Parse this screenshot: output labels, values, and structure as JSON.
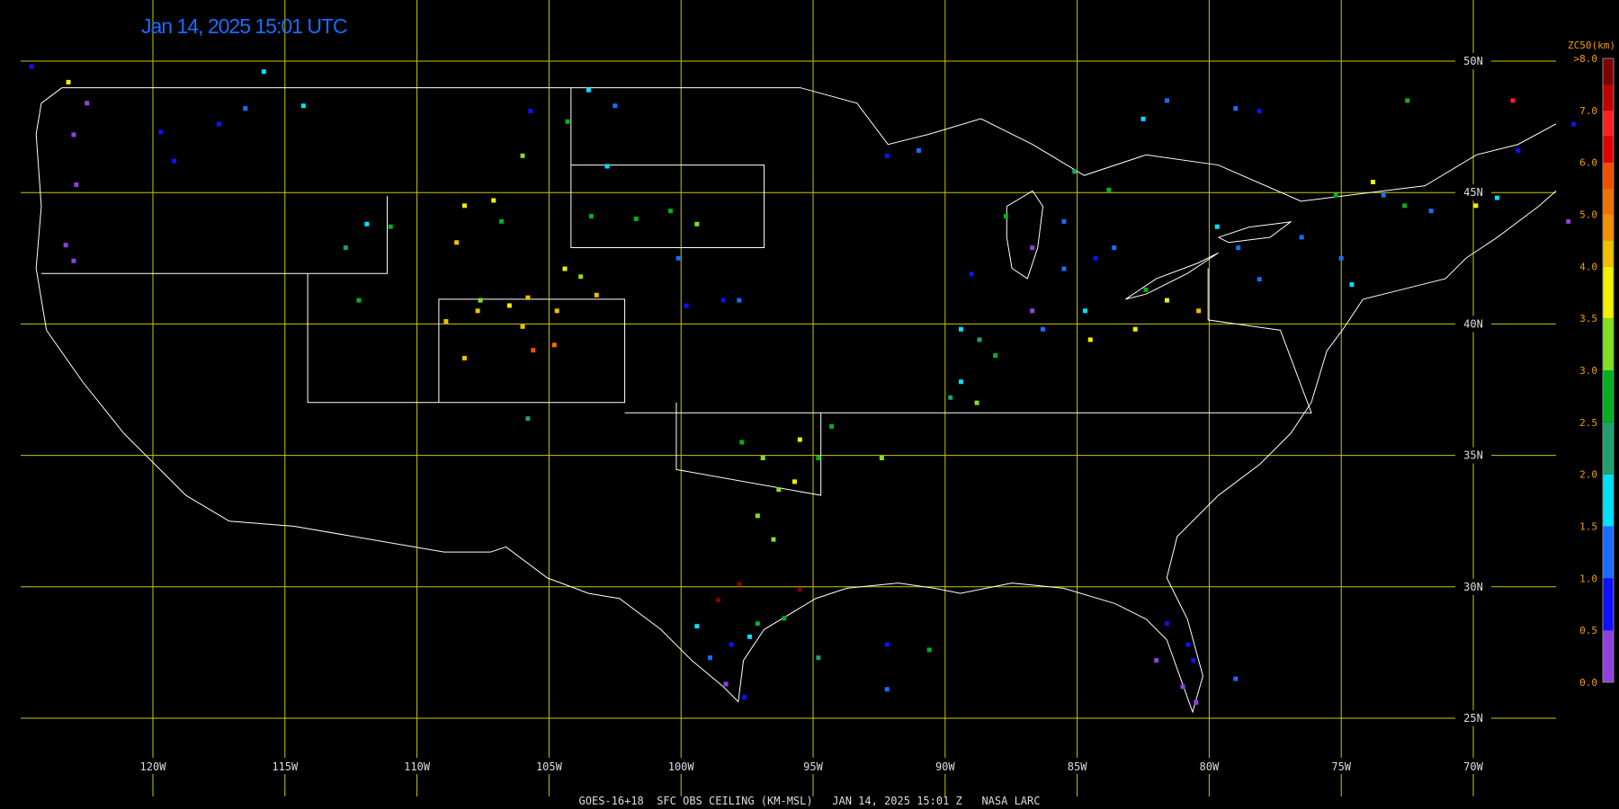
{
  "header": {
    "title": "Jan 14, 2025 15:01 UTC"
  },
  "map": {
    "lon_ticks": [
      {
        "value": -120,
        "label": "120W"
      },
      {
        "value": -115,
        "label": "115W"
      },
      {
        "value": -110,
        "label": "110W"
      },
      {
        "value": -105,
        "label": "105W"
      },
      {
        "value": -100,
        "label": "100W"
      },
      {
        "value": -95,
        "label": "95W"
      },
      {
        "value": -90,
        "label": "90W"
      },
      {
        "value": -85,
        "label": "85W"
      },
      {
        "value": -80,
        "label": "80W"
      },
      {
        "value": -75,
        "label": "75W"
      },
      {
        "value": -70,
        "label": "70W"
      }
    ],
    "lat_ticks": [
      {
        "value": 50,
        "label": "50N"
      },
      {
        "value": 45,
        "label": "45N"
      },
      {
        "value": 40,
        "label": "40N"
      },
      {
        "value": 35,
        "label": "35N"
      },
      {
        "value": 30,
        "label": "30N"
      },
      {
        "value": 25,
        "label": "25N"
      }
    ],
    "stations": [
      {
        "lon": -123.0,
        "lat": 47.2,
        "value": 0.3
      },
      {
        "lon": -122.9,
        "lat": 45.3,
        "value": 0.3
      },
      {
        "lon": -123.3,
        "lat": 43.0,
        "value": 0.3
      },
      {
        "lon": -123.0,
        "lat": 42.4,
        "value": 0.3
      },
      {
        "lon": -119.7,
        "lat": 47.3,
        "value": 0.8
      },
      {
        "lon": -119.2,
        "lat": 46.2,
        "value": 0.8
      },
      {
        "lon": -117.5,
        "lat": 47.6,
        "value": 0.8
      },
      {
        "lon": -116.5,
        "lat": 48.2,
        "value": 1.2
      },
      {
        "lon": -114.3,
        "lat": 48.3,
        "value": 1.6
      },
      {
        "lon": -115.8,
        "lat": 49.6,
        "value": 1.8
      },
      {
        "lon": -105.7,
        "lat": 48.1,
        "value": 0.8
      },
      {
        "lon": -104.3,
        "lat": 47.7,
        "value": 2.8
      },
      {
        "lon": -106.0,
        "lat": 46.4,
        "value": 3.2
      },
      {
        "lon": -103.5,
        "lat": 48.9,
        "value": 1.8
      },
      {
        "lon": -102.5,
        "lat": 48.3,
        "value": 1.2
      },
      {
        "lon": -102.8,
        "lat": 46.0,
        "value": 1.8
      },
      {
        "lon": -108.2,
        "lat": 44.5,
        "value": 3.8
      },
      {
        "lon": -108.5,
        "lat": 43.1,
        "value": 4.3
      },
      {
        "lon": -107.1,
        "lat": 44.7,
        "value": 3.8
      },
      {
        "lon": -106.8,
        "lat": 43.9,
        "value": 2.8
      },
      {
        "lon": -111.9,
        "lat": 43.8,
        "value": 1.8
      },
      {
        "lon": -112.7,
        "lat": 42.9,
        "value": 2.3
      },
      {
        "lon": -111.0,
        "lat": 43.7,
        "value": 2.8
      },
      {
        "lon": -112.2,
        "lat": 40.9,
        "value": 2.8
      },
      {
        "lon": -107.6,
        "lat": 40.9,
        "value": 3.2
      },
      {
        "lon": -107.7,
        "lat": 40.5,
        "value": 4.3
      },
      {
        "lon": -106.5,
        "lat": 40.7,
        "value": 3.8
      },
      {
        "lon": -106.0,
        "lat": 39.9,
        "value": 4.3
      },
      {
        "lon": -108.9,
        "lat": 40.1,
        "value": 4.3
      },
      {
        "lon": -108.2,
        "lat": 38.7,
        "value": 4.3
      },
      {
        "lon": -105.6,
        "lat": 39.0,
        "value": 5.7
      },
      {
        "lon": -104.8,
        "lat": 39.2,
        "value": 5.2
      },
      {
        "lon": -104.7,
        "lat": 40.5,
        "value": 4.3
      },
      {
        "lon": -105.8,
        "lat": 41.0,
        "value": 4.3
      },
      {
        "lon": -104.4,
        "lat": 42.1,
        "value": 3.8
      },
      {
        "lon": -103.2,
        "lat": 41.1,
        "value": 4.3
      },
      {
        "lon": -103.8,
        "lat": 41.8,
        "value": 3.2
      },
      {
        "lon": -103.4,
        "lat": 44.1,
        "value": 2.8
      },
      {
        "lon": -101.7,
        "lat": 44.0,
        "value": 2.8
      },
      {
        "lon": -100.4,
        "lat": 44.3,
        "value": 2.5
      },
      {
        "lon": -99.4,
        "lat": 43.8,
        "value": 3.2
      },
      {
        "lon": -100.1,
        "lat": 42.5,
        "value": 1.2
      },
      {
        "lon": -99.8,
        "lat": 40.7,
        "value": 0.8
      },
      {
        "lon": -98.4,
        "lat": 40.9,
        "value": 0.8
      },
      {
        "lon": -97.8,
        "lat": 40.9,
        "value": 1.1
      },
      {
        "lon": -105.8,
        "lat": 36.4,
        "value": 2.3
      },
      {
        "lon": -97.7,
        "lat": 35.5,
        "value": 2.8
      },
      {
        "lon": -96.9,
        "lat": 34.9,
        "value": 3.2
      },
      {
        "lon": -95.5,
        "lat": 35.6,
        "value": 3.8
      },
      {
        "lon": -94.8,
        "lat": 34.9,
        "value": 2.8
      },
      {
        "lon": -94.3,
        "lat": 36.1,
        "value": 2.8
      },
      {
        "lon": -95.7,
        "lat": 34.0,
        "value": 3.8
      },
      {
        "lon": -97.1,
        "lat": 32.7,
        "value": 3.2
      },
      {
        "lon": -96.5,
        "lat": 31.8,
        "value": 3.2
      },
      {
        "lon": -96.3,
        "lat": 33.7,
        "value": 3.2
      },
      {
        "lon": -92.4,
        "lat": 34.9,
        "value": 3.2
      },
      {
        "lon": -98.6,
        "lat": 29.5,
        "value": 7.8
      },
      {
        "lon": -97.8,
        "lat": 30.1,
        "value": 7.8
      },
      {
        "lon": -95.5,
        "lat": 29.9,
        "value": 7.8
      },
      {
        "lon": -96.1,
        "lat": 28.8,
        "value": 2.8
      },
      {
        "lon": -97.1,
        "lat": 28.6,
        "value": 2.8
      },
      {
        "lon": -99.4,
        "lat": 28.5,
        "value": 1.8
      },
      {
        "lon": -98.1,
        "lat": 27.8,
        "value": 0.8
      },
      {
        "lon": -98.9,
        "lat": 27.3,
        "value": 1.2
      },
      {
        "lon": -98.3,
        "lat": 26.3,
        "value": 0.3
      },
      {
        "lon": -97.6,
        "lat": 25.8,
        "value": 0.8
      },
      {
        "lon": -97.4,
        "lat": 28.1,
        "value": 1.8
      },
      {
        "lon": -94.8,
        "lat": 27.3,
        "value": 2.3
      },
      {
        "lon": -92.2,
        "lat": 27.8,
        "value": 0.8
      },
      {
        "lon": -92.2,
        "lat": 26.1,
        "value": 1.2
      },
      {
        "lon": -90.6,
        "lat": 27.6,
        "value": 2.8
      },
      {
        "lon": -89.0,
        "lat": 41.9,
        "value": 0.8
      },
      {
        "lon": -89.4,
        "lat": 39.8,
        "value": 1.8
      },
      {
        "lon": -88.7,
        "lat": 39.4,
        "value": 2.3
      },
      {
        "lon": -88.1,
        "lat": 38.8,
        "value": 2.8
      },
      {
        "lon": -86.7,
        "lat": 40.5,
        "value": 0.3
      },
      {
        "lon": -86.3,
        "lat": 39.8,
        "value": 1.0
      },
      {
        "lon": -85.5,
        "lat": 42.1,
        "value": 1.0
      },
      {
        "lon": -84.7,
        "lat": 40.5,
        "value": 1.8
      },
      {
        "lon": -84.3,
        "lat": 42.5,
        "value": 0.8
      },
      {
        "lon": -83.6,
        "lat": 42.9,
        "value": 1.0
      },
      {
        "lon": -84.5,
        "lat": 39.4,
        "value": 3.8
      },
      {
        "lon": -82.8,
        "lat": 39.8,
        "value": 3.8
      },
      {
        "lon": -81.6,
        "lat": 40.9,
        "value": 3.8
      },
      {
        "lon": -80.4,
        "lat": 40.5,
        "value": 4.3
      },
      {
        "lon": -82.4,
        "lat": 41.3,
        "value": 2.8
      },
      {
        "lon": -89.4,
        "lat": 37.8,
        "value": 1.8
      },
      {
        "lon": -88.8,
        "lat": 37.0,
        "value": 3.2
      },
      {
        "lon": -89.8,
        "lat": 37.2,
        "value": 2.3
      },
      {
        "lon": -87.7,
        "lat": 44.1,
        "value": 2.8
      },
      {
        "lon": -85.5,
        "lat": 43.9,
        "value": 1.2
      },
      {
        "lon": -85.1,
        "lat": 45.8,
        "value": 2.3
      },
      {
        "lon": -83.8,
        "lat": 45.1,
        "value": 2.8
      },
      {
        "lon": -86.7,
        "lat": 42.9,
        "value": 0.3
      },
      {
        "lon": -78.9,
        "lat": 42.9,
        "value": 1.2
      },
      {
        "lon": -76.5,
        "lat": 43.3,
        "value": 1.2
      },
      {
        "lon": -75.0,
        "lat": 42.5,
        "value": 1.0
      },
      {
        "lon": -79.7,
        "lat": 43.7,
        "value": 1.8
      },
      {
        "lon": -78.1,
        "lat": 41.7,
        "value": 1.2
      },
      {
        "lon": -74.6,
        "lat": 41.5,
        "value": 1.8
      },
      {
        "lon": -73.4,
        "lat": 44.9,
        "value": 1.0
      },
      {
        "lon": -72.6,
        "lat": 44.5,
        "value": 2.8
      },
      {
        "lon": -71.6,
        "lat": 44.3,
        "value": 1.2
      },
      {
        "lon": -69.1,
        "lat": 44.8,
        "value": 1.8
      },
      {
        "lon": -69.9,
        "lat": 44.5,
        "value": 3.8
      },
      {
        "lon": -68.3,
        "lat": 46.6,
        "value": 0.8
      },
      {
        "lon": -66.2,
        "lat": 47.6,
        "value": 0.8
      },
      {
        "lon": -66.4,
        "lat": 43.9,
        "value": 0.3
      },
      {
        "lon": -68.5,
        "lat": 48.5,
        "value": 6.8
      },
      {
        "lon": -73.8,
        "lat": 45.4,
        "value": 3.8
      },
      {
        "lon": -75.2,
        "lat": 44.9,
        "value": 2.8
      },
      {
        "lon": -81.6,
        "lat": 48.5,
        "value": 1.0
      },
      {
        "lon": -79.0,
        "lat": 48.2,
        "value": 1.0
      },
      {
        "lon": -78.1,
        "lat": 48.1,
        "value": 0.8
      },
      {
        "lon": -72.5,
        "lat": 48.5,
        "value": 2.8
      },
      {
        "lon": -82.5,
        "lat": 47.8,
        "value": 1.8
      },
      {
        "lon": -92.2,
        "lat": 46.4,
        "value": 0.8
      },
      {
        "lon": -91.0,
        "lat": 46.6,
        "value": 1.0
      },
      {
        "lon": -81.6,
        "lat": 28.6,
        "value": 0.8
      },
      {
        "lon": -80.8,
        "lat": 27.8,
        "value": 0.8
      },
      {
        "lon": -82.0,
        "lat": 27.2,
        "value": 0.3
      },
      {
        "lon": -81.0,
        "lat": 26.2,
        "value": 0.3
      },
      {
        "lon": -80.5,
        "lat": 25.6,
        "value": 0.3
      },
      {
        "lon": -80.6,
        "lat": 27.2,
        "value": 0.8
      },
      {
        "lon": -79.0,
        "lat": 26.5,
        "value": 1.2
      },
      {
        "lon": -124.6,
        "lat": 49.8,
        "value": 0.8
      },
      {
        "lon": -123.2,
        "lat": 49.2,
        "value": 3.8
      },
      {
        "lon": -122.5,
        "lat": 48.4,
        "value": 0.3
      }
    ]
  },
  "colorbar": {
    "title": "ZC50(km)",
    "bins": [
      0,
      0.5,
      1,
      1.5,
      2,
      2.5,
      3,
      3.5,
      4,
      4.5,
      5,
      5.5,
      6,
      6.5,
      7,
      7.5,
      8
    ],
    "colors": [
      "#9040e0",
      "#1010ff",
      "#1a6cff",
      "#00e0ff",
      "#20a070",
      "#00b020",
      "#80e020",
      "#f0f000",
      "#f0c000",
      "#f09000",
      "#f07000",
      "#f05000",
      "#e00000",
      "#ff2020",
      "#c00000",
      "#800000"
    ],
    "ticks": [
      {
        "value": 0,
        "label": "0.0"
      },
      {
        "value": 0.5,
        "label": "0.5"
      },
      {
        "value": 1,
        "label": "1.0"
      },
      {
        "value": 1.5,
        "label": "1.5"
      },
      {
        "value": 2,
        "label": "2.0"
      },
      {
        "value": 2.5,
        "label": "2.5"
      },
      {
        "value": 3,
        "label": "3.0"
      },
      {
        "value": 3.5,
        "label": "3.5"
      },
      {
        "value": 4,
        "label": "4.0"
      },
      {
        "value": 5,
        "label": "5.0"
      },
      {
        "value": 6,
        "label": "6.0"
      },
      {
        "value": 7,
        "label": "7.0"
      },
      {
        "value": 8,
        "label": ">8.0"
      }
    ]
  },
  "footer": {
    "caption": "GOES-16+18  SFC OBS CEILING (KM-MSL)   JAN 14, 2025 15:01 Z   NASA LARC"
  }
}
